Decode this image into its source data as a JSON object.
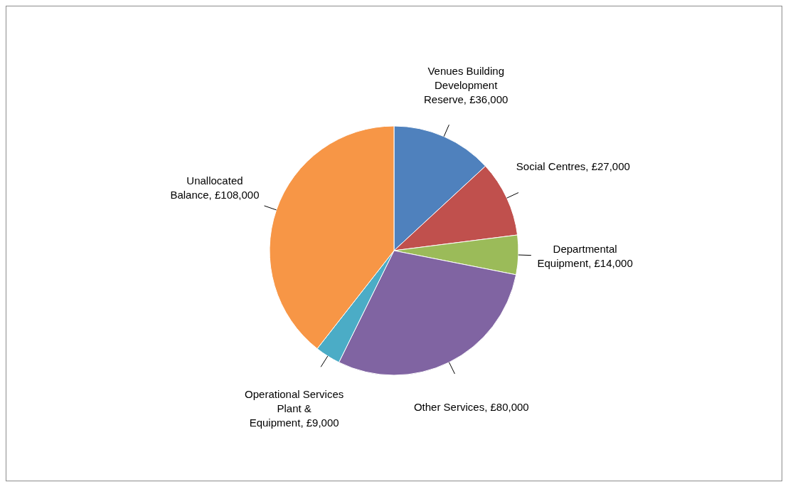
{
  "chart_data": {
    "type": "pie",
    "categories": [
      "Venues Building Development Reserve",
      "Social Centres",
      "Departmental Equipment",
      "Other Services",
      "Operational Services Plant & Equipment",
      "Unallocated Balance"
    ],
    "values": [
      36000,
      27000,
      14000,
      80000,
      9000,
      108000
    ],
    "colors": [
      "#4f81bd",
      "#c0504d",
      "#9bbb59",
      "#8064a2",
      "#4bacc6",
      "#f79646"
    ],
    "value_labels": [
      "£36,000",
      "£27,000",
      "£14,000",
      "£80,000",
      "£9,000",
      "£108,000"
    ],
    "legend": false
  }
}
